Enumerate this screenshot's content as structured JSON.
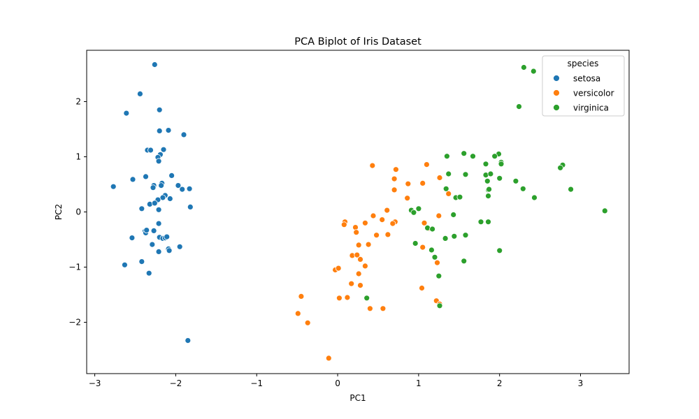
{
  "chart_data": {
    "type": "scatter",
    "title": "PCA Biplot of Iris Dataset",
    "xlabel": "PC1",
    "ylabel": "PC2",
    "xlim": [
      -3.1,
      3.6
    ],
    "ylim": [
      -2.93,
      2.93
    ],
    "xticks": [
      -3,
      -2,
      -1,
      0,
      1,
      2,
      3
    ],
    "yticks": [
      -2,
      -1,
      0,
      1,
      2
    ],
    "xtick_labels": [
      "−3",
      "−2",
      "−1",
      "0",
      "1",
      "2",
      "3"
    ],
    "ytick_labels": [
      "−2",
      "−1",
      "0",
      "1",
      "2"
    ],
    "grid": false,
    "legend": {
      "title": "species",
      "placement": "top-right"
    },
    "series": [
      {
        "name": "setosa",
        "color": "#1f77b4",
        "points": [
          [
            -2.26,
            2.67
          ],
          [
            -2.44,
            2.14
          ],
          [
            -2.61,
            1.79
          ],
          [
            -2.2,
            1.85
          ],
          [
            -2.2,
            1.47
          ],
          [
            -2.09,
            1.48
          ],
          [
            -1.9,
            1.4
          ],
          [
            -2.35,
            1.12
          ],
          [
            -2.31,
            1.12
          ],
          [
            -2.15,
            1.13
          ],
          [
            -2.19,
            1.04
          ],
          [
            -2.22,
            0.99
          ],
          [
            -2.21,
            0.92
          ],
          [
            -2.37,
            0.64
          ],
          [
            -2.05,
            0.66
          ],
          [
            -2.53,
            0.59
          ],
          [
            -2.77,
            0.46
          ],
          [
            -2.27,
            0.48
          ],
          [
            -2.28,
            0.44
          ],
          [
            -2.17,
            0.52
          ],
          [
            -2.18,
            0.48
          ],
          [
            -1.97,
            0.48
          ],
          [
            -1.92,
            0.41
          ],
          [
            -1.83,
            0.42
          ],
          [
            -2.13,
            0.3
          ],
          [
            -2.16,
            0.26
          ],
          [
            -2.22,
            0.22
          ],
          [
            -2.07,
            0.24
          ],
          [
            -2.32,
            0.14
          ],
          [
            -2.26,
            0.16
          ],
          [
            -2.42,
            0.06
          ],
          [
            -2.21,
            0.04
          ],
          [
            -1.82,
            0.09
          ],
          [
            -2.38,
            -0.35
          ],
          [
            -2.37,
            -0.38
          ],
          [
            -2.36,
            -0.33
          ],
          [
            -2.27,
            -0.34
          ],
          [
            -2.21,
            -0.21
          ],
          [
            -2.54,
            -0.47
          ],
          [
            -2.2,
            -0.46
          ],
          [
            -2.16,
            -0.48
          ],
          [
            -2.13,
            -0.47
          ],
          [
            -2.11,
            -0.45
          ],
          [
            -2.29,
            -0.59
          ],
          [
            -2.09,
            -0.67
          ],
          [
            -2.08,
            -0.7
          ],
          [
            -1.95,
            -0.63
          ],
          [
            -2.21,
            -0.72
          ],
          [
            -2.42,
            -0.9
          ],
          [
            -2.63,
            -0.96
          ],
          [
            -2.33,
            -1.11
          ],
          [
            -1.85,
            -2.33
          ]
        ]
      },
      {
        "name": "versicolor",
        "color": "#ff7f0e",
        "points": [
          [
            0.43,
            0.84
          ],
          [
            0.72,
            0.77
          ],
          [
            1.1,
            0.86
          ],
          [
            0.7,
            0.6
          ],
          [
            0.7,
            0.4
          ],
          [
            0.87,
            0.51
          ],
          [
            1.05,
            0.52
          ],
          [
            1.26,
            0.62
          ],
          [
            1.37,
            0.33
          ],
          [
            0.86,
            0.25
          ],
          [
            0.61,
            0.03
          ],
          [
            0.55,
            -0.14
          ],
          [
            0.44,
            -0.07
          ],
          [
            0.71,
            -0.18
          ],
          [
            0.68,
            -0.21
          ],
          [
            0.34,
            -0.2
          ],
          [
            0.09,
            -0.18
          ],
          [
            0.08,
            -0.23
          ],
          [
            0.22,
            -0.28
          ],
          [
            0.23,
            -0.37
          ],
          [
            1.07,
            -0.2
          ],
          [
            1.12,
            -0.3
          ],
          [
            1.25,
            -0.07
          ],
          [
            0.62,
            -0.41
          ],
          [
            0.48,
            -0.42
          ],
          [
            0.38,
            -0.59
          ],
          [
            0.26,
            -0.6
          ],
          [
            0.18,
            -0.79
          ],
          [
            0.24,
            -0.78
          ],
          [
            0.28,
            -0.86
          ],
          [
            0.34,
            -0.98
          ],
          [
            1.05,
            -0.64
          ],
          [
            1.23,
            -0.92
          ],
          [
            -0.03,
            -1.05
          ],
          [
            0.01,
            -1.02
          ],
          [
            0.26,
            -1.12
          ],
          [
            0.17,
            -1.3
          ],
          [
            0.28,
            -1.33
          ],
          [
            1.04,
            -1.38
          ],
          [
            0.02,
            -1.56
          ],
          [
            0.12,
            -1.55
          ],
          [
            0.4,
            -1.75
          ],
          [
            0.56,
            -1.75
          ],
          [
            1.22,
            -1.61
          ],
          [
            1.26,
            -1.67
          ],
          [
            -0.45,
            -1.53
          ],
          [
            -0.49,
            -1.84
          ],
          [
            -0.37,
            -2.01
          ],
          [
            -0.11,
            -2.65
          ]
        ]
      },
      {
        "name": "virginica",
        "color": "#2ca02c",
        "points": [
          [
            2.3,
            2.62
          ],
          [
            2.42,
            2.55
          ],
          [
            2.24,
            1.91
          ],
          [
            1.56,
            1.06
          ],
          [
            1.99,
            1.05
          ],
          [
            2.02,
            0.9
          ],
          [
            2.02,
            0.87
          ],
          [
            1.35,
            1.01
          ],
          [
            1.67,
            1.01
          ],
          [
            1.94,
            1.01
          ],
          [
            1.83,
            0.87
          ],
          [
            2.78,
            0.85
          ],
          [
            2.75,
            0.8
          ],
          [
            1.37,
            0.69
          ],
          [
            1.58,
            0.68
          ],
          [
            1.83,
            0.67
          ],
          [
            1.89,
            0.69
          ],
          [
            2.0,
            0.61
          ],
          [
            2.2,
            0.56
          ],
          [
            1.85,
            0.56
          ],
          [
            1.34,
            0.42
          ],
          [
            1.86,
            0.4
          ],
          [
            1.87,
            0.41
          ],
          [
            2.29,
            0.42
          ],
          [
            2.88,
            0.41
          ],
          [
            1.86,
            0.29
          ],
          [
            1.46,
            0.26
          ],
          [
            1.51,
            0.27
          ],
          [
            2.43,
            0.26
          ],
          [
            3.3,
            0.02
          ],
          [
            0.91,
            0.03
          ],
          [
            0.94,
            -0.01
          ],
          [
            1.0,
            0.06
          ],
          [
            1.43,
            -0.05
          ],
          [
            1.77,
            -0.18
          ],
          [
            1.86,
            -0.18
          ],
          [
            1.11,
            -0.29
          ],
          [
            1.17,
            -0.31
          ],
          [
            1.33,
            -0.48
          ],
          [
            1.44,
            -0.44
          ],
          [
            1.58,
            -0.42
          ],
          [
            0.96,
            -0.57
          ],
          [
            1.16,
            -0.69
          ],
          [
            1.2,
            -0.82
          ],
          [
            2.0,
            -0.7
          ],
          [
            1.56,
            -0.89
          ],
          [
            1.25,
            -1.16
          ],
          [
            0.36,
            -1.56
          ],
          [
            1.26,
            -1.7
          ]
        ]
      }
    ]
  }
}
